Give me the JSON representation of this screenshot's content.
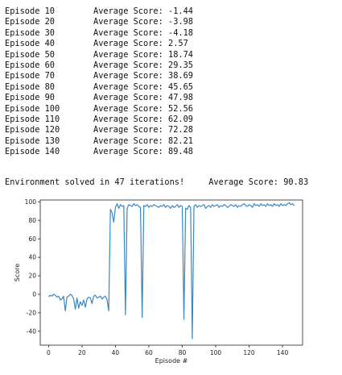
{
  "log": {
    "episode_prefix": "Episode",
    "score_label": "Average Score:",
    "rows": [
      {
        "episode": "10",
        "score": "-1.44"
      },
      {
        "episode": "20",
        "score": "-3.98"
      },
      {
        "episode": "30",
        "score": "-4.18"
      },
      {
        "episode": "40",
        "score": "2.57"
      },
      {
        "episode": "50",
        "score": "18.74"
      },
      {
        "episode": "60",
        "score": "29.35"
      },
      {
        "episode": "70",
        "score": "38.69"
      },
      {
        "episode": "80",
        "score": "45.65"
      },
      {
        "episode": "90",
        "score": "47.98"
      },
      {
        "episode": "100",
        "score": "52.56"
      },
      {
        "episode": "110",
        "score": "62.09"
      },
      {
        "episode": "120",
        "score": "72.28"
      },
      {
        "episode": "130",
        "score": "82.21"
      },
      {
        "episode": "140",
        "score": "89.48"
      }
    ],
    "solved_text": "Environment solved in 47 iterations!",
    "solved_score_label": "Average Score:",
    "solved_score": "90.83"
  },
  "chart_data": {
    "type": "line",
    "xlabel": "Episode #",
    "ylabel": "Score",
    "xlim": [
      -5,
      152
    ],
    "ylim": [
      -55,
      102
    ],
    "xticks": [
      0,
      20,
      40,
      60,
      80,
      100,
      120,
      140
    ],
    "yticks": [
      -40,
      -20,
      0,
      20,
      40,
      60,
      80,
      100
    ],
    "grid": false,
    "line_color": "#3a86c0",
    "series": [
      {
        "x": [
          0,
          1,
          2,
          3,
          4,
          5,
          6,
          7,
          8,
          9,
          10,
          11,
          12,
          13,
          14,
          15,
          16,
          17,
          18,
          19,
          20,
          21,
          22,
          23,
          24,
          25,
          26,
          27,
          28,
          29,
          30,
          31,
          32,
          33,
          34,
          35,
          36,
          37,
          38,
          39,
          40,
          41,
          42,
          43,
          44,
          45,
          46,
          47,
          48,
          49,
          50,
          51,
          52,
          53,
          54,
          55,
          56,
          57,
          58,
          59,
          60,
          61,
          62,
          63,
          64,
          65,
          66,
          67,
          68,
          69,
          70,
          71,
          72,
          73,
          74,
          75,
          76,
          77,
          78,
          79,
          80,
          81,
          82,
          83,
          84,
          85,
          86,
          87,
          88,
          89,
          90,
          91,
          92,
          93,
          94,
          95,
          96,
          97,
          98,
          99,
          100,
          101,
          102,
          103,
          104,
          105,
          106,
          107,
          108,
          109,
          110,
          111,
          112,
          113,
          114,
          115,
          116,
          117,
          118,
          119,
          120,
          121,
          122,
          123,
          124,
          125,
          126,
          127,
          128,
          129,
          130,
          131,
          132,
          133,
          134,
          135,
          136,
          137,
          138,
          139,
          140,
          141,
          142,
          143,
          144,
          145,
          146,
          147
        ],
        "values": [
          -3,
          -1,
          -2,
          0,
          -1,
          -3,
          -2,
          -6,
          -5,
          -2,
          -18,
          -3,
          -2,
          0,
          -1,
          -5,
          -16,
          -4,
          -15,
          -8,
          -12,
          -6,
          -14,
          -5,
          -3,
          -4,
          -10,
          -2,
          -1,
          -4,
          -3,
          -2,
          -5,
          -3,
          -2,
          -6,
          -18,
          92,
          88,
          78,
          94,
          98,
          93,
          97,
          95,
          96,
          -22,
          93,
          97,
          96,
          95,
          98,
          96,
          97,
          95,
          94,
          -25,
          96,
          95,
          97,
          94,
          96,
          95,
          97,
          96,
          95,
          94,
          96,
          95,
          97,
          94,
          96,
          95,
          93,
          96,
          94,
          95,
          97,
          94,
          96,
          95,
          -27,
          93,
          92,
          96,
          94,
          -48,
          95,
          97,
          94,
          96,
          95,
          96,
          97,
          93,
          95,
          96,
          94,
          97,
          95,
          96,
          97,
          94,
          96,
          95,
          97,
          96,
          94,
          95,
          97,
          96,
          95,
          97,
          94,
          96,
          95,
          97,
          98,
          96,
          95,
          97,
          96,
          94,
          98,
          96,
          97,
          95,
          98,
          96,
          97,
          95,
          98,
          96,
          97,
          95,
          98,
          96,
          97,
          95,
          98,
          96,
          97,
          96,
          98,
          99,
          97,
          98,
          96
        ]
      }
    ]
  }
}
